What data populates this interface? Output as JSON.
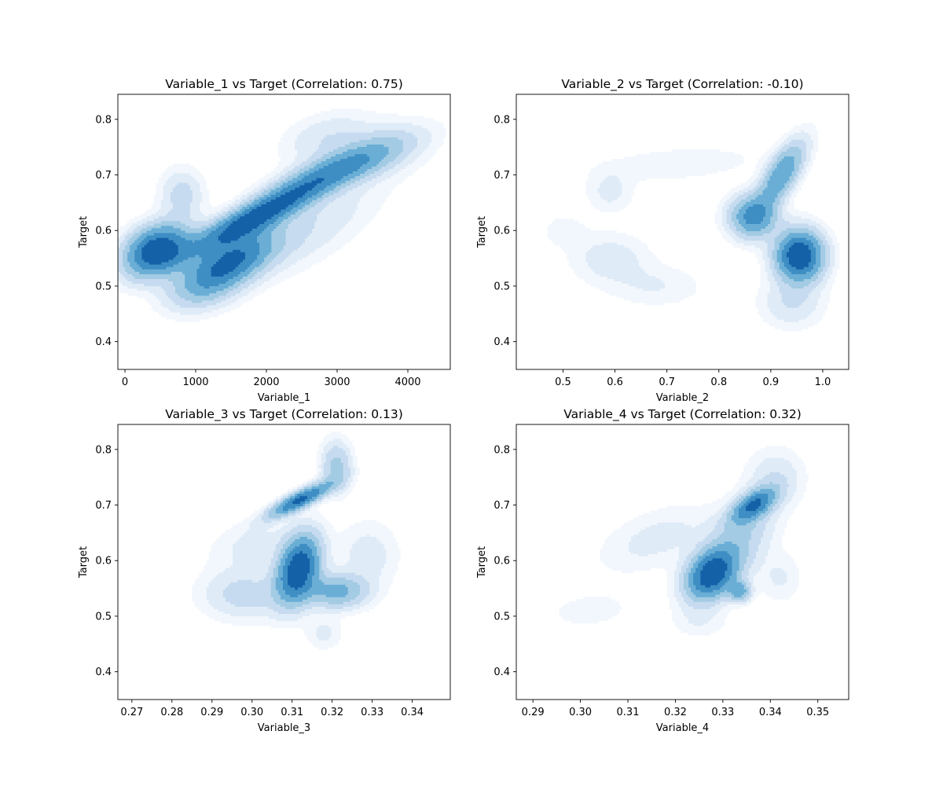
{
  "figure": {
    "background": "#ffffff",
    "colormap": [
      "#f2f7fd",
      "#dfebf7",
      "#c6dbef",
      "#a3cbe3",
      "#6aaed6",
      "#3e8ec4",
      "#1561a8"
    ]
  },
  "chart_data": [
    {
      "type": "kde-contour",
      "title": "Variable_1 vs Target (Correlation: 0.75)",
      "xlabel": "Variable_1",
      "ylabel": "Target",
      "xlim": [
        -100,
        4600
      ],
      "ylim": [
        0.35,
        0.845
      ],
      "xticks": [
        0,
        1000,
        2000,
        3000,
        4000
      ],
      "xtick_labels": [
        "0",
        "1000",
        "2000",
        "3000",
        "4000"
      ],
      "yticks": [
        0.4,
        0.5,
        0.6,
        0.7,
        0.8
      ],
      "ytick_labels": [
        "0.4",
        "0.5",
        "0.6",
        "0.7",
        "0.8"
      ],
      "correlation": 0.75,
      "density_peaks": [
        {
          "x": 450,
          "y": 0.565,
          "sx": 300,
          "sy": 0.03,
          "rho": 0.3,
          "w": 1.0
        },
        {
          "x": 1850,
          "y": 0.625,
          "sx": 650,
          "sy": 0.045,
          "rho": 0.9,
          "w": 0.9
        },
        {
          "x": 1500,
          "y": 0.545,
          "sx": 400,
          "sy": 0.035,
          "rho": 0.6,
          "w": 0.75
        },
        {
          "x": 3000,
          "y": 0.71,
          "sx": 600,
          "sy": 0.035,
          "rho": 0.8,
          "w": 0.5
        },
        {
          "x": 800,
          "y": 0.665,
          "sx": 200,
          "sy": 0.03,
          "rho": 0,
          "w": 0.2
        },
        {
          "x": 1100,
          "y": 0.5,
          "sx": 350,
          "sy": 0.03,
          "rho": 0.3,
          "w": 0.25
        },
        {
          "x": 2500,
          "y": 0.6,
          "sx": 700,
          "sy": 0.06,
          "rho": 0.7,
          "w": 0.15
        },
        {
          "x": 3500,
          "y": 0.745,
          "sx": 500,
          "sy": 0.035,
          "rho": 0.3,
          "w": 0.15
        },
        {
          "x": 2800,
          "y": 0.77,
          "sx": 400,
          "sy": 0.03,
          "rho": 0.4,
          "w": 0.12
        }
      ]
    },
    {
      "type": "kde-contour",
      "title": "Variable_2 vs Target (Correlation: -0.10)",
      "xlabel": "Variable_2",
      "ylabel": "Target",
      "xlim": [
        0.41,
        1.05
      ],
      "ylim": [
        0.35,
        0.845
      ],
      "xticks": [
        0.5,
        0.6,
        0.7,
        0.8,
        0.9,
        1.0
      ],
      "xtick_labels": [
        "0.5",
        "0.6",
        "0.7",
        "0.8",
        "0.9",
        "1.0"
      ],
      "yticks": [
        0.4,
        0.5,
        0.6,
        0.7,
        0.8
      ],
      "ytick_labels": [
        "0.4",
        "0.5",
        "0.6",
        "0.7",
        "0.8"
      ],
      "correlation": -0.1,
      "density_peaks": [
        {
          "x": 0.955,
          "y": 0.555,
          "sx": 0.03,
          "sy": 0.03,
          "rho": 0,
          "w": 1.0
        },
        {
          "x": 0.865,
          "y": 0.625,
          "sx": 0.03,
          "sy": 0.025,
          "rho": 0,
          "w": 0.6
        },
        {
          "x": 0.92,
          "y": 0.7,
          "sx": 0.03,
          "sy": 0.04,
          "rho": 0.7,
          "w": 0.55
        },
        {
          "x": 0.59,
          "y": 0.55,
          "sx": 0.05,
          "sy": 0.03,
          "rho": 0,
          "w": 0.12
        },
        {
          "x": 0.59,
          "y": 0.67,
          "sx": 0.03,
          "sy": 0.025,
          "rho": 0,
          "w": 0.1
        },
        {
          "x": 0.72,
          "y": 0.72,
          "sx": 0.1,
          "sy": 0.02,
          "rho": 0.3,
          "w": 0.08
        },
        {
          "x": 0.68,
          "y": 0.5,
          "sx": 0.06,
          "sy": 0.025,
          "rho": 0,
          "w": 0.08
        },
        {
          "x": 0.94,
          "y": 0.47,
          "sx": 0.04,
          "sy": 0.03,
          "rho": 0,
          "w": 0.15
        },
        {
          "x": 0.5,
          "y": 0.6,
          "sx": 0.03,
          "sy": 0.02,
          "rho": 0,
          "w": 0.06
        }
      ]
    },
    {
      "type": "kde-contour",
      "title": "Variable_3 vs Target (Correlation: 0.13)",
      "xlabel": "Variable_3",
      "ylabel": "Target",
      "xlim": [
        0.2665,
        0.3495
      ],
      "ylim": [
        0.35,
        0.845
      ],
      "xticks": [
        0.27,
        0.28,
        0.29,
        0.3,
        0.31,
        0.32,
        0.33,
        0.34
      ],
      "xtick_labels": [
        "0.27",
        "0.28",
        "0.29",
        "0.30",
        "0.31",
        "0.32",
        "0.33",
        "0.34"
      ],
      "yticks": [
        0.4,
        0.5,
        0.6,
        0.7,
        0.8
      ],
      "ytick_labels": [
        "0.4",
        "0.5",
        "0.6",
        "0.7",
        "0.8"
      ],
      "correlation": 0.13,
      "density_peaks": [
        {
          "x": 0.3115,
          "y": 0.585,
          "sx": 0.0035,
          "sy": 0.04,
          "rho": 0.3,
          "w": 1.0
        },
        {
          "x": 0.312,
          "y": 0.71,
          "sx": 0.005,
          "sy": 0.02,
          "rho": 0.85,
          "w": 0.85
        },
        {
          "x": 0.321,
          "y": 0.545,
          "sx": 0.005,
          "sy": 0.02,
          "rho": 0,
          "w": 0.45
        },
        {
          "x": 0.321,
          "y": 0.77,
          "sx": 0.0025,
          "sy": 0.03,
          "rho": 0,
          "w": 0.3
        },
        {
          "x": 0.298,
          "y": 0.54,
          "sx": 0.007,
          "sy": 0.03,
          "rho": 0,
          "w": 0.2
        },
        {
          "x": 0.329,
          "y": 0.61,
          "sx": 0.005,
          "sy": 0.04,
          "rho": 0,
          "w": 0.12
        },
        {
          "x": 0.3,
          "y": 0.63,
          "sx": 0.007,
          "sy": 0.03,
          "rho": 0.3,
          "w": 0.1
        },
        {
          "x": 0.318,
          "y": 0.47,
          "sx": 0.003,
          "sy": 0.02,
          "rho": 0,
          "w": 0.1
        }
      ]
    },
    {
      "type": "kde-contour",
      "title": "Variable_4 vs Target (Correlation: 0.32)",
      "xlabel": "Variable_4",
      "ylabel": "Target",
      "xlim": [
        0.2865,
        0.3565
      ],
      "ylim": [
        0.35,
        0.845
      ],
      "xticks": [
        0.29,
        0.3,
        0.31,
        0.32,
        0.33,
        0.34,
        0.35
      ],
      "xtick_labels": [
        "0.29",
        "0.30",
        "0.31",
        "0.32",
        "0.33",
        "0.34",
        "0.35"
      ],
      "yticks": [
        0.4,
        0.5,
        0.6,
        0.7,
        0.8
      ],
      "ytick_labels": [
        "0.4",
        "0.5",
        "0.6",
        "0.7",
        "0.8"
      ],
      "correlation": 0.32,
      "density_peaks": [
        {
          "x": 0.3275,
          "y": 0.575,
          "sx": 0.0035,
          "sy": 0.03,
          "rho": 0.3,
          "w": 1.0
        },
        {
          "x": 0.3365,
          "y": 0.7,
          "sx": 0.003,
          "sy": 0.02,
          "rho": 0.6,
          "w": 0.8
        },
        {
          "x": 0.3335,
          "y": 0.545,
          "sx": 0.0015,
          "sy": 0.012,
          "rho": 0,
          "w": 0.5
        },
        {
          "x": 0.333,
          "y": 0.635,
          "sx": 0.005,
          "sy": 0.05,
          "rho": 0.5,
          "w": 0.3
        },
        {
          "x": 0.316,
          "y": 0.64,
          "sx": 0.008,
          "sy": 0.04,
          "rho": 0.5,
          "w": 0.12
        },
        {
          "x": 0.302,
          "y": 0.51,
          "sx": 0.007,
          "sy": 0.025,
          "rho": 0.2,
          "w": 0.06
        },
        {
          "x": 0.341,
          "y": 0.75,
          "sx": 0.004,
          "sy": 0.035,
          "rho": 0,
          "w": 0.15
        },
        {
          "x": 0.342,
          "y": 0.57,
          "sx": 0.003,
          "sy": 0.03,
          "rho": 0,
          "w": 0.1
        },
        {
          "x": 0.325,
          "y": 0.49,
          "sx": 0.004,
          "sy": 0.02,
          "rho": 0,
          "w": 0.08
        }
      ]
    }
  ]
}
